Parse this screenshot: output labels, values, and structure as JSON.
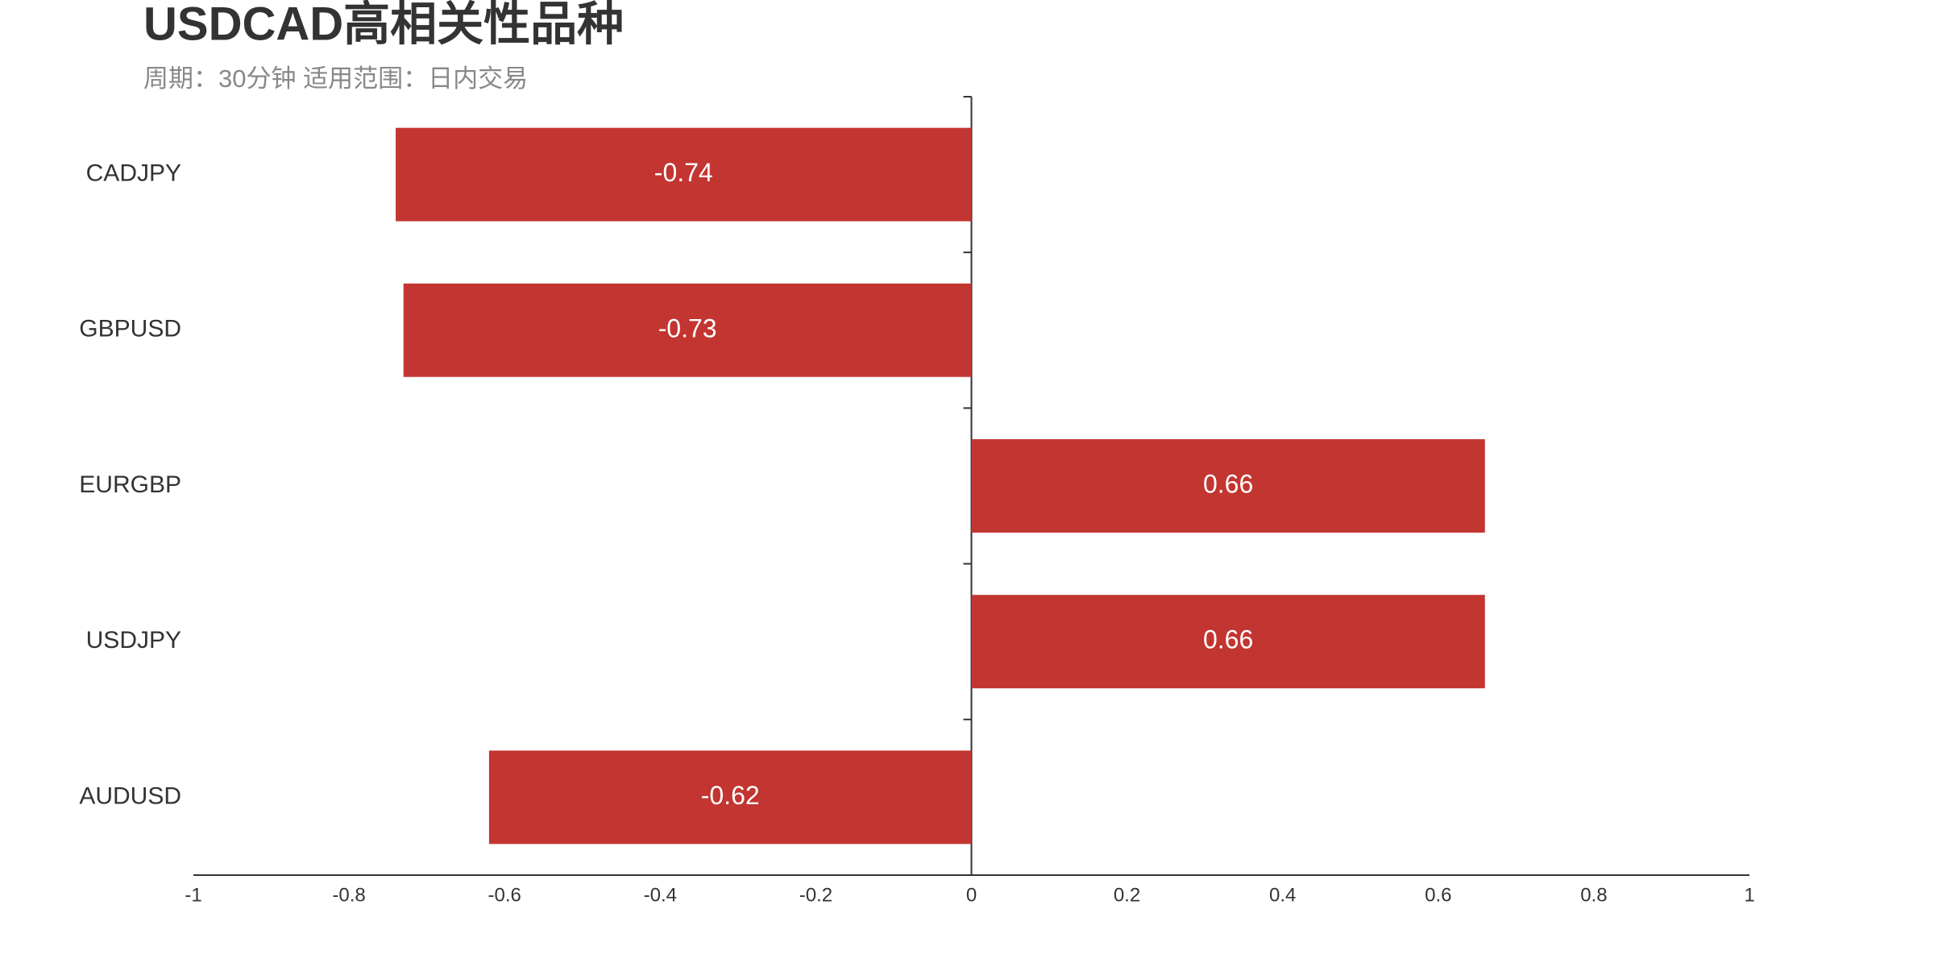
{
  "chart_data": {
    "type": "barh",
    "title": "USDCAD高相关性品种",
    "subtitle": "周期：30分钟 适用范围：日内交易",
    "categories": [
      "CADJPY",
      "GBPUSD",
      "EURGBP",
      "USDJPY",
      "AUDUSD"
    ],
    "values": [
      -0.74,
      -0.73,
      0.66,
      0.66,
      -0.62
    ],
    "color": "#c23531",
    "xlim": [
      -1,
      1
    ],
    "xticks": [
      -1,
      -0.8,
      -0.6,
      -0.4,
      -0.2,
      0,
      0.2,
      0.4,
      0.6,
      0.8,
      1
    ]
  }
}
